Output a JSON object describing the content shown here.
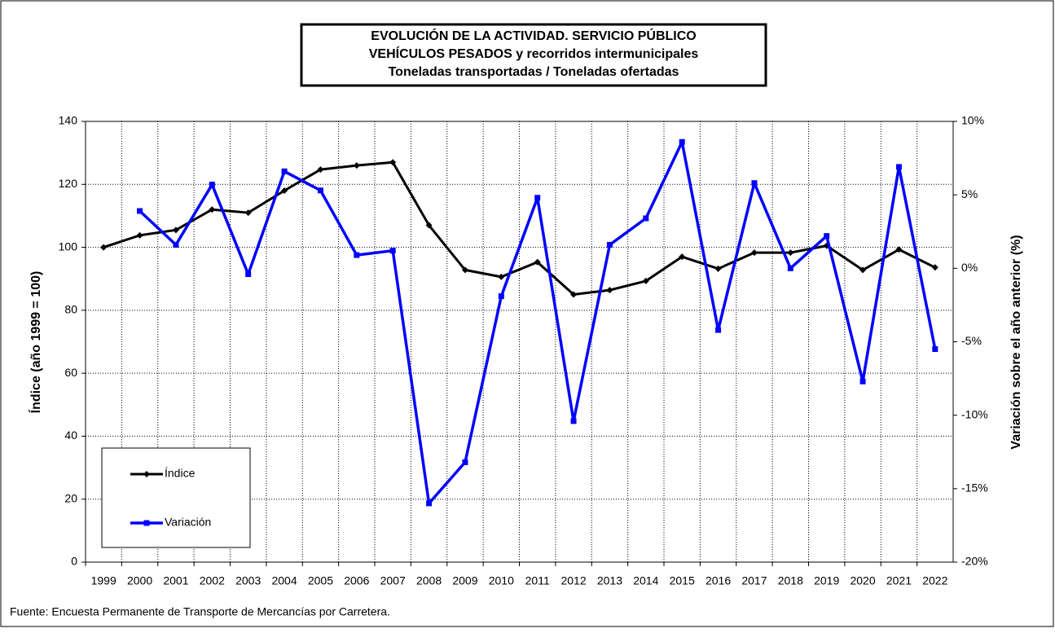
{
  "chart_data": {
    "type": "line",
    "title": [
      "EVOLUCIÓN  DE  LA  ACTIVIDAD.  SERVICIO  PÚBLICO",
      "VEHÍCULOS  PESADOS  y  recorridos  intermunicipales",
      "Toneladas transportadas / Toneladas ofertadas"
    ],
    "ylabel": "Índice (año 1999 = 100)",
    "y2label": "Variación sobre el año anterior (%)",
    "source": "Fuente: Encuesta Permanente de Transporte de Mercancías por Carretera.",
    "categories": [
      "1999",
      "2000",
      "2001",
      "2002",
      "2003",
      "2004",
      "2005",
      "2006",
      "2007",
      "2008",
      "2009",
      "2010",
      "2011",
      "2012",
      "2013",
      "2014",
      "2015",
      "2016",
      "2017",
      "2018",
      "2019",
      "2020",
      "2021",
      "2022"
    ],
    "series": [
      {
        "name": "Índice",
        "color": "#000000",
        "values": [
          100,
          103.8,
          105.5,
          112,
          111,
          118,
          124.7,
          126,
          127,
          107,
          92.8,
          90.6,
          95.3,
          85,
          86.4,
          89.3,
          97,
          93.2,
          98.3,
          98.3,
          100.5,
          92.8,
          99.3,
          93.6
        ]
      },
      {
        "name": "Variación",
        "color": "#0000ff",
        "axis": "y2",
        "values": [
          null,
          3.9,
          1.6,
          5.7,
          -0.4,
          6.6,
          5.3,
          0.9,
          1.2,
          -16,
          -13.2,
          -1.9,
          4.8,
          -10.4,
          1.6,
          3.4,
          8.6,
          -4.2,
          5.8,
          0,
          2.2,
          -7.7,
          6.9,
          -5.5
        ]
      }
    ],
    "ylim": [
      0,
      140
    ],
    "yticks": [
      0,
      20,
      40,
      60,
      80,
      100,
      120,
      140
    ],
    "y2lim": [
      -20,
      10
    ],
    "y2ticks": [
      {
        "value": -20,
        "label": "-20%"
      },
      {
        "value": -15,
        "label": "-15%"
      },
      {
        "value": -10,
        "label": "-10%"
      },
      {
        "value": -5,
        "label": "-5%"
      },
      {
        "value": 0,
        "label": "0%"
      },
      {
        "value": 5,
        "label": "5%"
      },
      {
        "value": 10,
        "label": "10%"
      }
    ],
    "grid": true,
    "legend": "lower left"
  }
}
